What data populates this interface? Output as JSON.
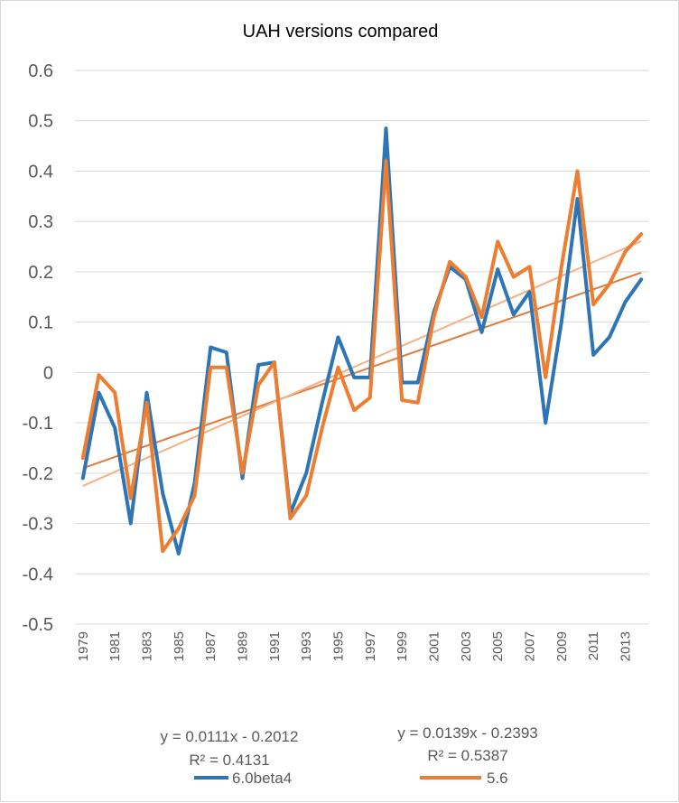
{
  "chart_data": {
    "type": "line",
    "title": "UAH versions compared",
    "xlabel": "",
    "ylabel": "",
    "ylim": [
      -0.5,
      0.6
    ],
    "yticks": [
      "0.6",
      "0.5",
      "0.4",
      "0.3",
      "0.2",
      "0.1",
      "0",
      "-0.1",
      "-0.2",
      "-0.3",
      "-0.4",
      "-0.5"
    ],
    "grid": true,
    "legend_position": "bottom",
    "x": [
      1979,
      1980,
      1981,
      1982,
      1983,
      1984,
      1985,
      1986,
      1987,
      1988,
      1989,
      1990,
      1991,
      1992,
      1993,
      1994,
      1995,
      1996,
      1997,
      1998,
      1999,
      2000,
      2001,
      2002,
      2003,
      2004,
      2005,
      2006,
      2007,
      2008,
      2009,
      2010,
      2011,
      2012,
      2013,
      2014
    ],
    "xtick_labels": [
      "1979",
      "1981",
      "1983",
      "1985",
      "1987",
      "1989",
      "1991",
      "1993",
      "1995",
      "1997",
      "1999",
      "2001",
      "2003",
      "2005",
      "2007",
      "2009",
      "2011",
      "2013"
    ],
    "series": [
      {
        "name": "6.0beta4",
        "color": "#2e75b6",
        "values": [
          -0.21,
          -0.04,
          -0.11,
          -0.3,
          -0.04,
          -0.24,
          -0.36,
          -0.22,
          0.05,
          0.04,
          -0.21,
          0.015,
          0.02,
          -0.28,
          -0.2,
          -0.06,
          0.07,
          -0.01,
          -0.01,
          0.485,
          -0.02,
          -0.02,
          0.12,
          0.21,
          0.185,
          0.08,
          0.205,
          0.115,
          0.16,
          -0.1,
          0.1,
          0.345,
          0.035,
          0.07,
          0.14,
          0.185
        ],
        "trendline": {
          "equation": "y = 0.0111x - 0.2012",
          "r2": "R² = 0.4131",
          "slope": 0.0111,
          "intercept": -0.2012,
          "color": "#e07b39"
        }
      },
      {
        "name": "5.6",
        "color": "#ed7d31",
        "values": [
          -0.17,
          -0.005,
          -0.04,
          -0.25,
          -0.06,
          -0.355,
          -0.31,
          -0.245,
          0.01,
          0.01,
          -0.2,
          -0.025,
          0.02,
          -0.29,
          -0.245,
          -0.11,
          0.01,
          -0.075,
          -0.05,
          0.42,
          -0.055,
          -0.06,
          0.11,
          0.22,
          0.19,
          0.11,
          0.26,
          0.19,
          0.21,
          -0.01,
          0.21,
          0.4,
          0.135,
          0.175,
          0.24,
          0.275
        ],
        "trendline": {
          "equation": "y = 0.0139x - 0.2393",
          "r2": "R² = 0.5387",
          "slope": 0.0139,
          "intercept": -0.2393,
          "color": "#f4b183"
        }
      }
    ]
  }
}
